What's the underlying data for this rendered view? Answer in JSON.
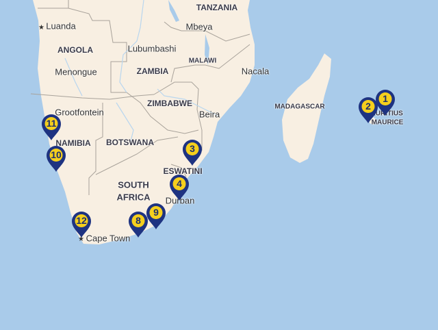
{
  "colors": {
    "water": "#a9cbea",
    "land": "#f8efe2",
    "border": "#a8a29a",
    "pin": "#1e3381",
    "pin_badge": "#f5cf1d"
  },
  "labels": [
    {
      "text": "TANZANIA",
      "type": "country"
    },
    {
      "text": "Luanda",
      "type": "capital"
    },
    {
      "text": "Mbeya",
      "type": "city"
    },
    {
      "text": "ANGOLA",
      "type": "country"
    },
    {
      "text": "Lubumbashi",
      "type": "city"
    },
    {
      "text": "MALAWI",
      "type": "country"
    },
    {
      "text": "Nacala",
      "type": "city"
    },
    {
      "text": "Menongue",
      "type": "city"
    },
    {
      "text": "ZAMBIA",
      "type": "country"
    },
    {
      "text": "MADAGASCAR",
      "type": "country"
    },
    {
      "text": "ZIMBABWE",
      "type": "country"
    },
    {
      "text": "Grootfontein",
      "type": "city"
    },
    {
      "text": "Beira",
      "type": "city"
    },
    {
      "text": "MAURITIUS",
      "type": "country"
    },
    {
      "text": "MAURICE",
      "type": "country"
    },
    {
      "text": "NAMIBIA",
      "type": "country"
    },
    {
      "text": "BOTSWANA",
      "type": "country"
    },
    {
      "text": "ESWATINI",
      "type": "country"
    },
    {
      "text": "SOUTH",
      "type": "country"
    },
    {
      "text": "AFRICA",
      "type": "country"
    },
    {
      "text": "Durban",
      "type": "city"
    },
    {
      "text": "Cape Town",
      "type": "capital"
    }
  ],
  "markers": [
    "1",
    "2",
    "3",
    "4",
    "8",
    "9",
    "10",
    "11",
    "12"
  ]
}
